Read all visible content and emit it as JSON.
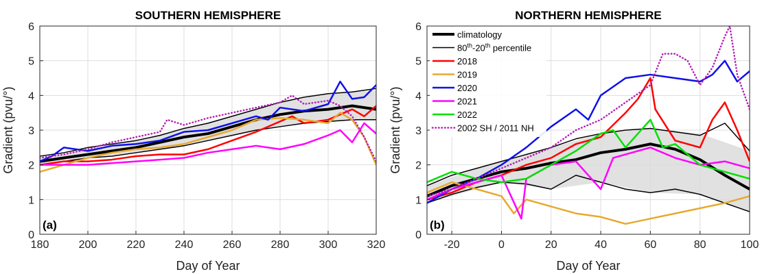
{
  "chart_data": [
    {
      "panel": "(a)",
      "type": "line",
      "title": "SOUTHERN HEMISPHERE",
      "xlabel": "Day of Year",
      "ylabel": "Gradient (pvu/°)",
      "xlim": [
        180,
        320
      ],
      "ylim": [
        0,
        6
      ],
      "xticks": [
        180,
        200,
        220,
        240,
        260,
        280,
        300,
        320
      ],
      "yticks": [
        0,
        1,
        2,
        3,
        4,
        5,
        6
      ],
      "grid": true,
      "band": {
        "x": [
          180,
          200,
          220,
          240,
          260,
          280,
          300,
          320
        ],
        "upper": [
          2.2,
          2.45,
          2.7,
          3.05,
          3.4,
          3.8,
          4.05,
          4.15
        ],
        "lower": [
          2.0,
          2.2,
          2.35,
          2.55,
          2.85,
          3.1,
          3.25,
          3.3
        ]
      },
      "series": [
        {
          "color": "#000000",
          "style": "solid",
          "width": 4,
          "x": [
            180,
            190,
            200,
            210,
            220,
            230,
            240,
            250,
            260,
            270,
            280,
            290,
            300,
            310,
            320
          ],
          "y": [
            2.1,
            2.2,
            2.3,
            2.4,
            2.5,
            2.65,
            2.8,
            2.9,
            3.1,
            3.3,
            3.45,
            3.55,
            3.6,
            3.7,
            3.6
          ]
        },
        {
          "color": "#000000",
          "style": "solid",
          "width": 1.5,
          "x": [
            180,
            190,
            200,
            210,
            220,
            230,
            240,
            250,
            260,
            270,
            280,
            290,
            300,
            310,
            320
          ],
          "y": [
            2.25,
            2.35,
            2.5,
            2.6,
            2.7,
            2.85,
            3.05,
            3.2,
            3.4,
            3.6,
            3.8,
            3.95,
            4.05,
            4.1,
            4.2
          ]
        },
        {
          "color": "#000000",
          "style": "solid",
          "width": 1.5,
          "x": [
            180,
            190,
            200,
            210,
            220,
            230,
            240,
            250,
            260,
            270,
            280,
            290,
            300,
            310,
            320
          ],
          "y": [
            2.0,
            2.1,
            2.2,
            2.25,
            2.35,
            2.45,
            2.55,
            2.7,
            2.85,
            3.0,
            3.1,
            3.2,
            3.25,
            3.3,
            3.3
          ]
        },
        {
          "color": "#ff0000",
          "style": "solid",
          "width": 2.5,
          "x": [
            180,
            190,
            200,
            210,
            220,
            230,
            240,
            250,
            260,
            270,
            280,
            285,
            290,
            300,
            310,
            315,
            320
          ],
          "y": [
            2.0,
            2.1,
            2.1,
            2.15,
            2.25,
            2.3,
            2.3,
            2.45,
            2.7,
            2.95,
            3.25,
            3.4,
            3.2,
            3.3,
            3.6,
            3.4,
            3.7
          ]
        },
        {
          "color": "#e8a830",
          "style": "solid",
          "width": 2.5,
          "x": [
            180,
            190,
            200,
            210,
            220,
            230,
            240,
            250,
            260,
            270,
            280,
            290,
            300,
            305,
            310,
            315,
            320
          ],
          "y": [
            1.8,
            2.0,
            2.2,
            2.35,
            2.45,
            2.5,
            2.6,
            2.8,
            3.0,
            3.3,
            3.35,
            3.3,
            3.2,
            3.5,
            3.3,
            2.8,
            2.0
          ]
        },
        {
          "color": "#1010e8",
          "style": "solid",
          "width": 2.5,
          "x": [
            180,
            185,
            190,
            200,
            210,
            220,
            230,
            240,
            250,
            260,
            270,
            275,
            280,
            290,
            300,
            305,
            310,
            315,
            320
          ],
          "y": [
            2.1,
            2.25,
            2.5,
            2.4,
            2.55,
            2.6,
            2.7,
            2.95,
            3.0,
            3.2,
            3.4,
            3.3,
            3.65,
            3.55,
            3.75,
            4.4,
            3.9,
            3.95,
            4.3
          ]
        },
        {
          "color": "#ff00ff",
          "style": "solid",
          "width": 2.5,
          "x": [
            180,
            190,
            200,
            210,
            220,
            230,
            240,
            250,
            260,
            270,
            280,
            290,
            300,
            305,
            310,
            315,
            320
          ],
          "y": [
            2.0,
            2.0,
            2.0,
            2.05,
            2.1,
            2.15,
            2.2,
            2.35,
            2.45,
            2.55,
            2.45,
            2.6,
            2.85,
            3.0,
            2.65,
            3.2,
            2.9
          ]
        },
        {
          "color": "#b51fb5",
          "style": "dotted",
          "width": 2.5,
          "x": [
            180,
            190,
            200,
            210,
            220,
            230,
            233,
            240,
            250,
            260,
            270,
            280,
            285,
            290,
            300,
            305,
            310,
            315,
            320
          ],
          "y": [
            2.2,
            2.3,
            2.45,
            2.65,
            2.8,
            2.95,
            3.3,
            3.15,
            3.35,
            3.5,
            3.65,
            3.8,
            4.0,
            3.75,
            3.85,
            3.7,
            3.4,
            2.8,
            2.1
          ]
        }
      ]
    },
    {
      "panel": "(b)",
      "type": "line",
      "title": "NORTHERN HEMISPHERE",
      "xlabel": "Day of Year",
      "ylabel": "Gradient (pvu/°)",
      "xlim": [
        -30,
        100
      ],
      "ylim": [
        0,
        6
      ],
      "xticks": [
        -20,
        0,
        20,
        40,
        60,
        80,
        100
      ],
      "yticks": [
        0,
        1,
        2,
        3,
        4,
        5,
        6
      ],
      "grid": true,
      "legend": {
        "position": "top-left",
        "entries": [
          {
            "label": "climatology",
            "color": "#000000",
            "style": "solid",
            "width": 4
          },
          {
            "label_pre": "80",
            "sup1": "th",
            "label_mid": "-20",
            "sup2": "th",
            "label_post": " percentile",
            "color": "#000000",
            "style": "solid",
            "width": 1.5
          },
          {
            "label": "2018",
            "color": "#ff0000",
            "style": "solid",
            "width": 2.5
          },
          {
            "label": "2019",
            "color": "#e8a830",
            "style": "solid",
            "width": 2.5
          },
          {
            "label": "2020",
            "color": "#1010e8",
            "style": "solid",
            "width": 2.5
          },
          {
            "label": "2021",
            "color": "#ff00ff",
            "style": "solid",
            "width": 2.5
          },
          {
            "label": "2022",
            "color": "#00e000",
            "style": "solid",
            "width": 2.5
          },
          {
            "label": "2002 SH / 2011 NH",
            "color": "#b51fb5",
            "style": "dotted",
            "width": 2.5
          }
        ]
      },
      "band": {
        "x": [
          -30,
          -10,
          0,
          20,
          40,
          60,
          80,
          100
        ],
        "upper": [
          1.4,
          1.9,
          2.1,
          2.5,
          2.9,
          3.05,
          2.9,
          2.4
        ],
        "lower": [
          0.9,
          1.3,
          1.5,
          1.3,
          1.5,
          1.2,
          1.15,
          0.65
        ]
      },
      "series": [
        {
          "color": "#000000",
          "style": "solid",
          "width": 4,
          "x": [
            -30,
            -20,
            -10,
            0,
            10,
            20,
            30,
            40,
            50,
            60,
            70,
            80,
            90,
            100
          ],
          "y": [
            1.1,
            1.4,
            1.6,
            1.8,
            1.9,
            2.05,
            2.15,
            2.35,
            2.45,
            2.6,
            2.45,
            2.15,
            1.7,
            1.3
          ]
        },
        {
          "color": "#000000",
          "style": "solid",
          "width": 1.5,
          "x": [
            -30,
            -20,
            -10,
            0,
            10,
            20,
            30,
            40,
            50,
            60,
            70,
            80,
            90,
            100
          ],
          "y": [
            1.4,
            1.7,
            1.9,
            2.1,
            2.3,
            2.5,
            2.75,
            2.9,
            3.0,
            3.05,
            2.95,
            2.85,
            3.2,
            2.4
          ]
        },
        {
          "color": "#000000",
          "style": "solid",
          "width": 1.5,
          "x": [
            -30,
            -20,
            -10,
            0,
            10,
            20,
            30,
            40,
            50,
            60,
            70,
            80,
            90,
            100
          ],
          "y": [
            0.9,
            1.15,
            1.35,
            1.5,
            1.45,
            1.3,
            1.7,
            1.5,
            1.3,
            1.2,
            1.3,
            1.15,
            0.9,
            0.65
          ]
        },
        {
          "color": "#ff0000",
          "style": "solid",
          "width": 2.5,
          "x": [
            -30,
            -20,
            -10,
            0,
            10,
            20,
            30,
            40,
            50,
            55,
            60,
            62,
            70,
            80,
            85,
            90,
            95,
            100
          ],
          "y": [
            1.0,
            1.2,
            1.5,
            1.7,
            2.0,
            2.2,
            2.6,
            2.8,
            3.5,
            3.9,
            4.5,
            3.6,
            2.7,
            2.5,
            3.3,
            3.8,
            3.0,
            2.1
          ]
        },
        {
          "color": "#e8a830",
          "style": "solid",
          "width": 2.5,
          "x": [
            -30,
            -20,
            -10,
            0,
            5,
            10,
            20,
            30,
            40,
            50,
            60,
            70,
            80,
            90,
            100
          ],
          "y": [
            1.2,
            1.5,
            1.3,
            1.1,
            0.6,
            1.0,
            0.8,
            0.6,
            0.5,
            0.3,
            0.45,
            0.6,
            0.75,
            0.9,
            1.1
          ]
        },
        {
          "color": "#1010e8",
          "style": "solid",
          "width": 2.5,
          "x": [
            -30,
            -20,
            -10,
            0,
            10,
            20,
            30,
            35,
            40,
            50,
            60,
            70,
            80,
            85,
            90,
            95,
            100
          ],
          "y": [
            0.9,
            1.3,
            1.6,
            2.0,
            2.5,
            3.1,
            3.6,
            3.3,
            4.0,
            4.5,
            4.6,
            4.5,
            4.4,
            4.6,
            5.0,
            4.4,
            4.7
          ]
        },
        {
          "color": "#ff00ff",
          "style": "solid",
          "width": 2.5,
          "x": [
            -30,
            -20,
            -10,
            0,
            8,
            10,
            20,
            30,
            40,
            45,
            50,
            60,
            70,
            80,
            90,
            100
          ],
          "y": [
            1.0,
            1.3,
            1.5,
            1.7,
            0.45,
            1.6,
            2.0,
            2.1,
            1.3,
            2.2,
            2.3,
            2.5,
            2.2,
            2.0,
            2.1,
            1.9
          ]
        },
        {
          "color": "#00e000",
          "style": "solid",
          "width": 2.5,
          "x": [
            -30,
            -20,
            -10,
            0,
            10,
            20,
            30,
            40,
            45,
            50,
            60,
            65,
            70,
            80,
            90,
            100
          ],
          "y": [
            1.5,
            1.8,
            1.6,
            1.5,
            1.6,
            2.0,
            2.4,
            2.9,
            3.0,
            2.5,
            3.3,
            2.5,
            2.6,
            2.0,
            1.8,
            1.6
          ]
        },
        {
          "color": "#b51fb5",
          "style": "dotted",
          "width": 2.5,
          "x": [
            -30,
            -20,
            -10,
            0,
            10,
            20,
            30,
            40,
            50,
            60,
            65,
            70,
            75,
            80,
            85,
            90,
            92,
            95,
            100
          ],
          "y": [
            1.1,
            1.3,
            1.6,
            1.9,
            2.2,
            2.5,
            3.0,
            3.3,
            3.8,
            4.3,
            5.2,
            5.2,
            5.0,
            4.3,
            4.8,
            5.7,
            6.0,
            4.6,
            3.6
          ]
        }
      ]
    }
  ]
}
